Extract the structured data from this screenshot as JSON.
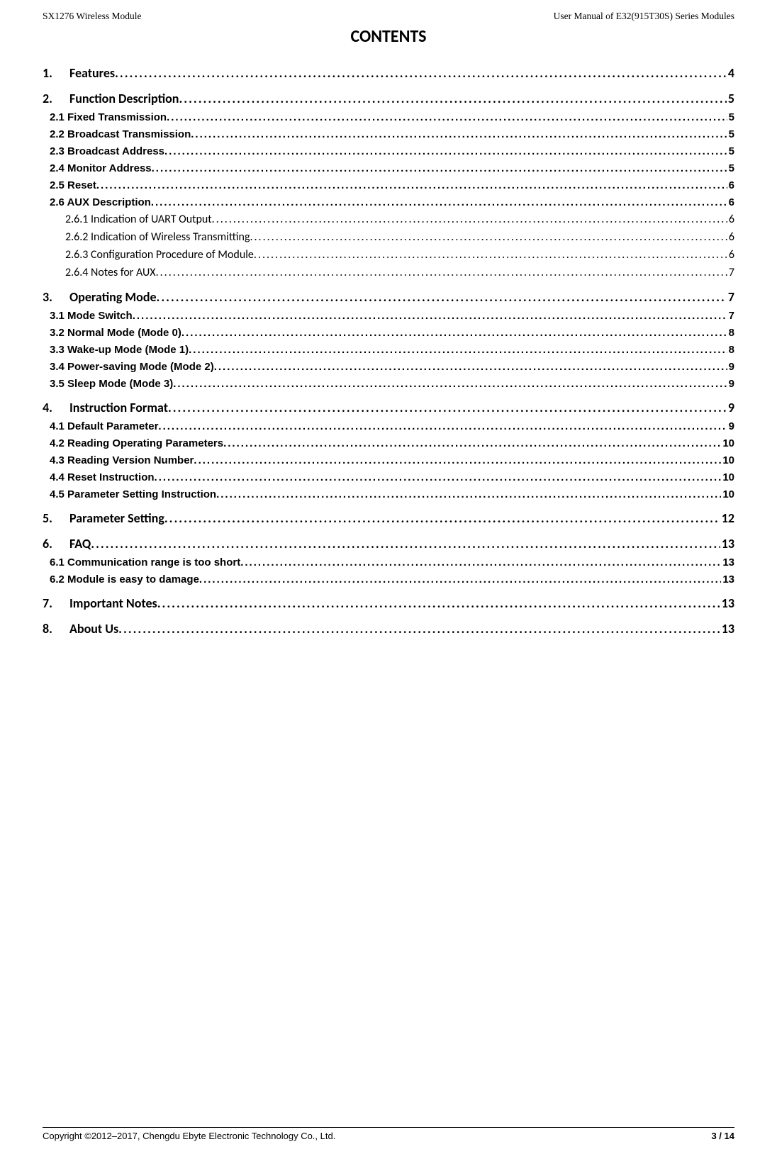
{
  "header": {
    "left": "SX1276 Wireless Module",
    "right": "User Manual of E32(915T30S) Series Modules"
  },
  "title": "CONTENTS",
  "toc": [
    {
      "level": 1,
      "num": "1.",
      "text": "Features",
      "page": "4"
    },
    {
      "level": 1,
      "num": "2.",
      "text": "Function Description",
      "page": "5"
    },
    {
      "level": 2,
      "num": "",
      "text": "2.1 Fixed Transmission",
      "page": "5"
    },
    {
      "level": 2,
      "num": "",
      "text": "2.2 Broadcast Transmission",
      "page": "5"
    },
    {
      "level": 2,
      "num": "",
      "text": "2.3 Broadcast Address",
      "page": "5"
    },
    {
      "level": 2,
      "num": "",
      "text": "2.4 Monitor Address",
      "page": "5"
    },
    {
      "level": 2,
      "num": "",
      "text": "2.5 Reset",
      "page": "6"
    },
    {
      "level": 2,
      "num": "",
      "text": "2.6 AUX Description",
      "page": "6"
    },
    {
      "level": 3,
      "num": "",
      "text": "2.6.1 Indication of UART Output",
      "page": "6"
    },
    {
      "level": 3,
      "num": "",
      "text": "2.6.2 Indication of Wireless Transmitting",
      "page": "6"
    },
    {
      "level": 3,
      "num": "",
      "text": "2.6.3 Configuration Procedure of Module",
      "page": "6"
    },
    {
      "level": 3,
      "num": "",
      "text": "2.6.4 Notes for AUX",
      "page": "7"
    },
    {
      "level": 1,
      "num": "3.",
      "text": "Operating Mode",
      "page": "7"
    },
    {
      "level": 2,
      "num": "",
      "text": "3.1 Mode Switch",
      "page": "7"
    },
    {
      "level": 2,
      "num": "",
      "text": "3.2 Normal Mode (Mode 0)",
      "page": "8"
    },
    {
      "level": 2,
      "num": "",
      "text": "3.3 Wake-up Mode (Mode 1)",
      "page": "8"
    },
    {
      "level": 2,
      "num": "",
      "text": "3.4 Power-saving Mode (Mode 2)",
      "page": "9"
    },
    {
      "level": 2,
      "num": "",
      "text": "3.5 Sleep Mode (Mode 3)",
      "page": "9"
    },
    {
      "level": 1,
      "num": "4.",
      "text": "Instruction Format",
      "page": "9"
    },
    {
      "level": 2,
      "num": "",
      "text": "4.1 Default Parameter",
      "page": "9"
    },
    {
      "level": 2,
      "num": "",
      "text": "4.2 Reading Operating Parameters",
      "page": "10"
    },
    {
      "level": 2,
      "num": "",
      "text": "4.3 Reading Version Number",
      "page": "10"
    },
    {
      "level": 2,
      "num": "",
      "text": "4.4 Reset Instruction",
      "page": "10"
    },
    {
      "level": 2,
      "num": "",
      "text": "4.5 Parameter Setting Instruction",
      "page": "10"
    },
    {
      "level": 1,
      "num": "5.",
      "text": "Parameter Setting",
      "page": "12"
    },
    {
      "level": 1,
      "num": "6.",
      "text": "FAQ",
      "page": "13"
    },
    {
      "level": 2,
      "num": "",
      "text": "6.1 Communication range is too short",
      "page": "13"
    },
    {
      "level": 2,
      "num": "",
      "text": "6.2 Module is easy to damage",
      "page": "13"
    },
    {
      "level": 1,
      "num": "7.",
      "text": "Important Notes",
      "page": "13"
    },
    {
      "level": 1,
      "num": "8.",
      "text": "About Us",
      "page": "13"
    }
  ],
  "footer": {
    "left": "Copyright ©2012–2017, Chengdu Ebyte Electronic Technology Co., Ltd.",
    "right": "3 / 14"
  }
}
